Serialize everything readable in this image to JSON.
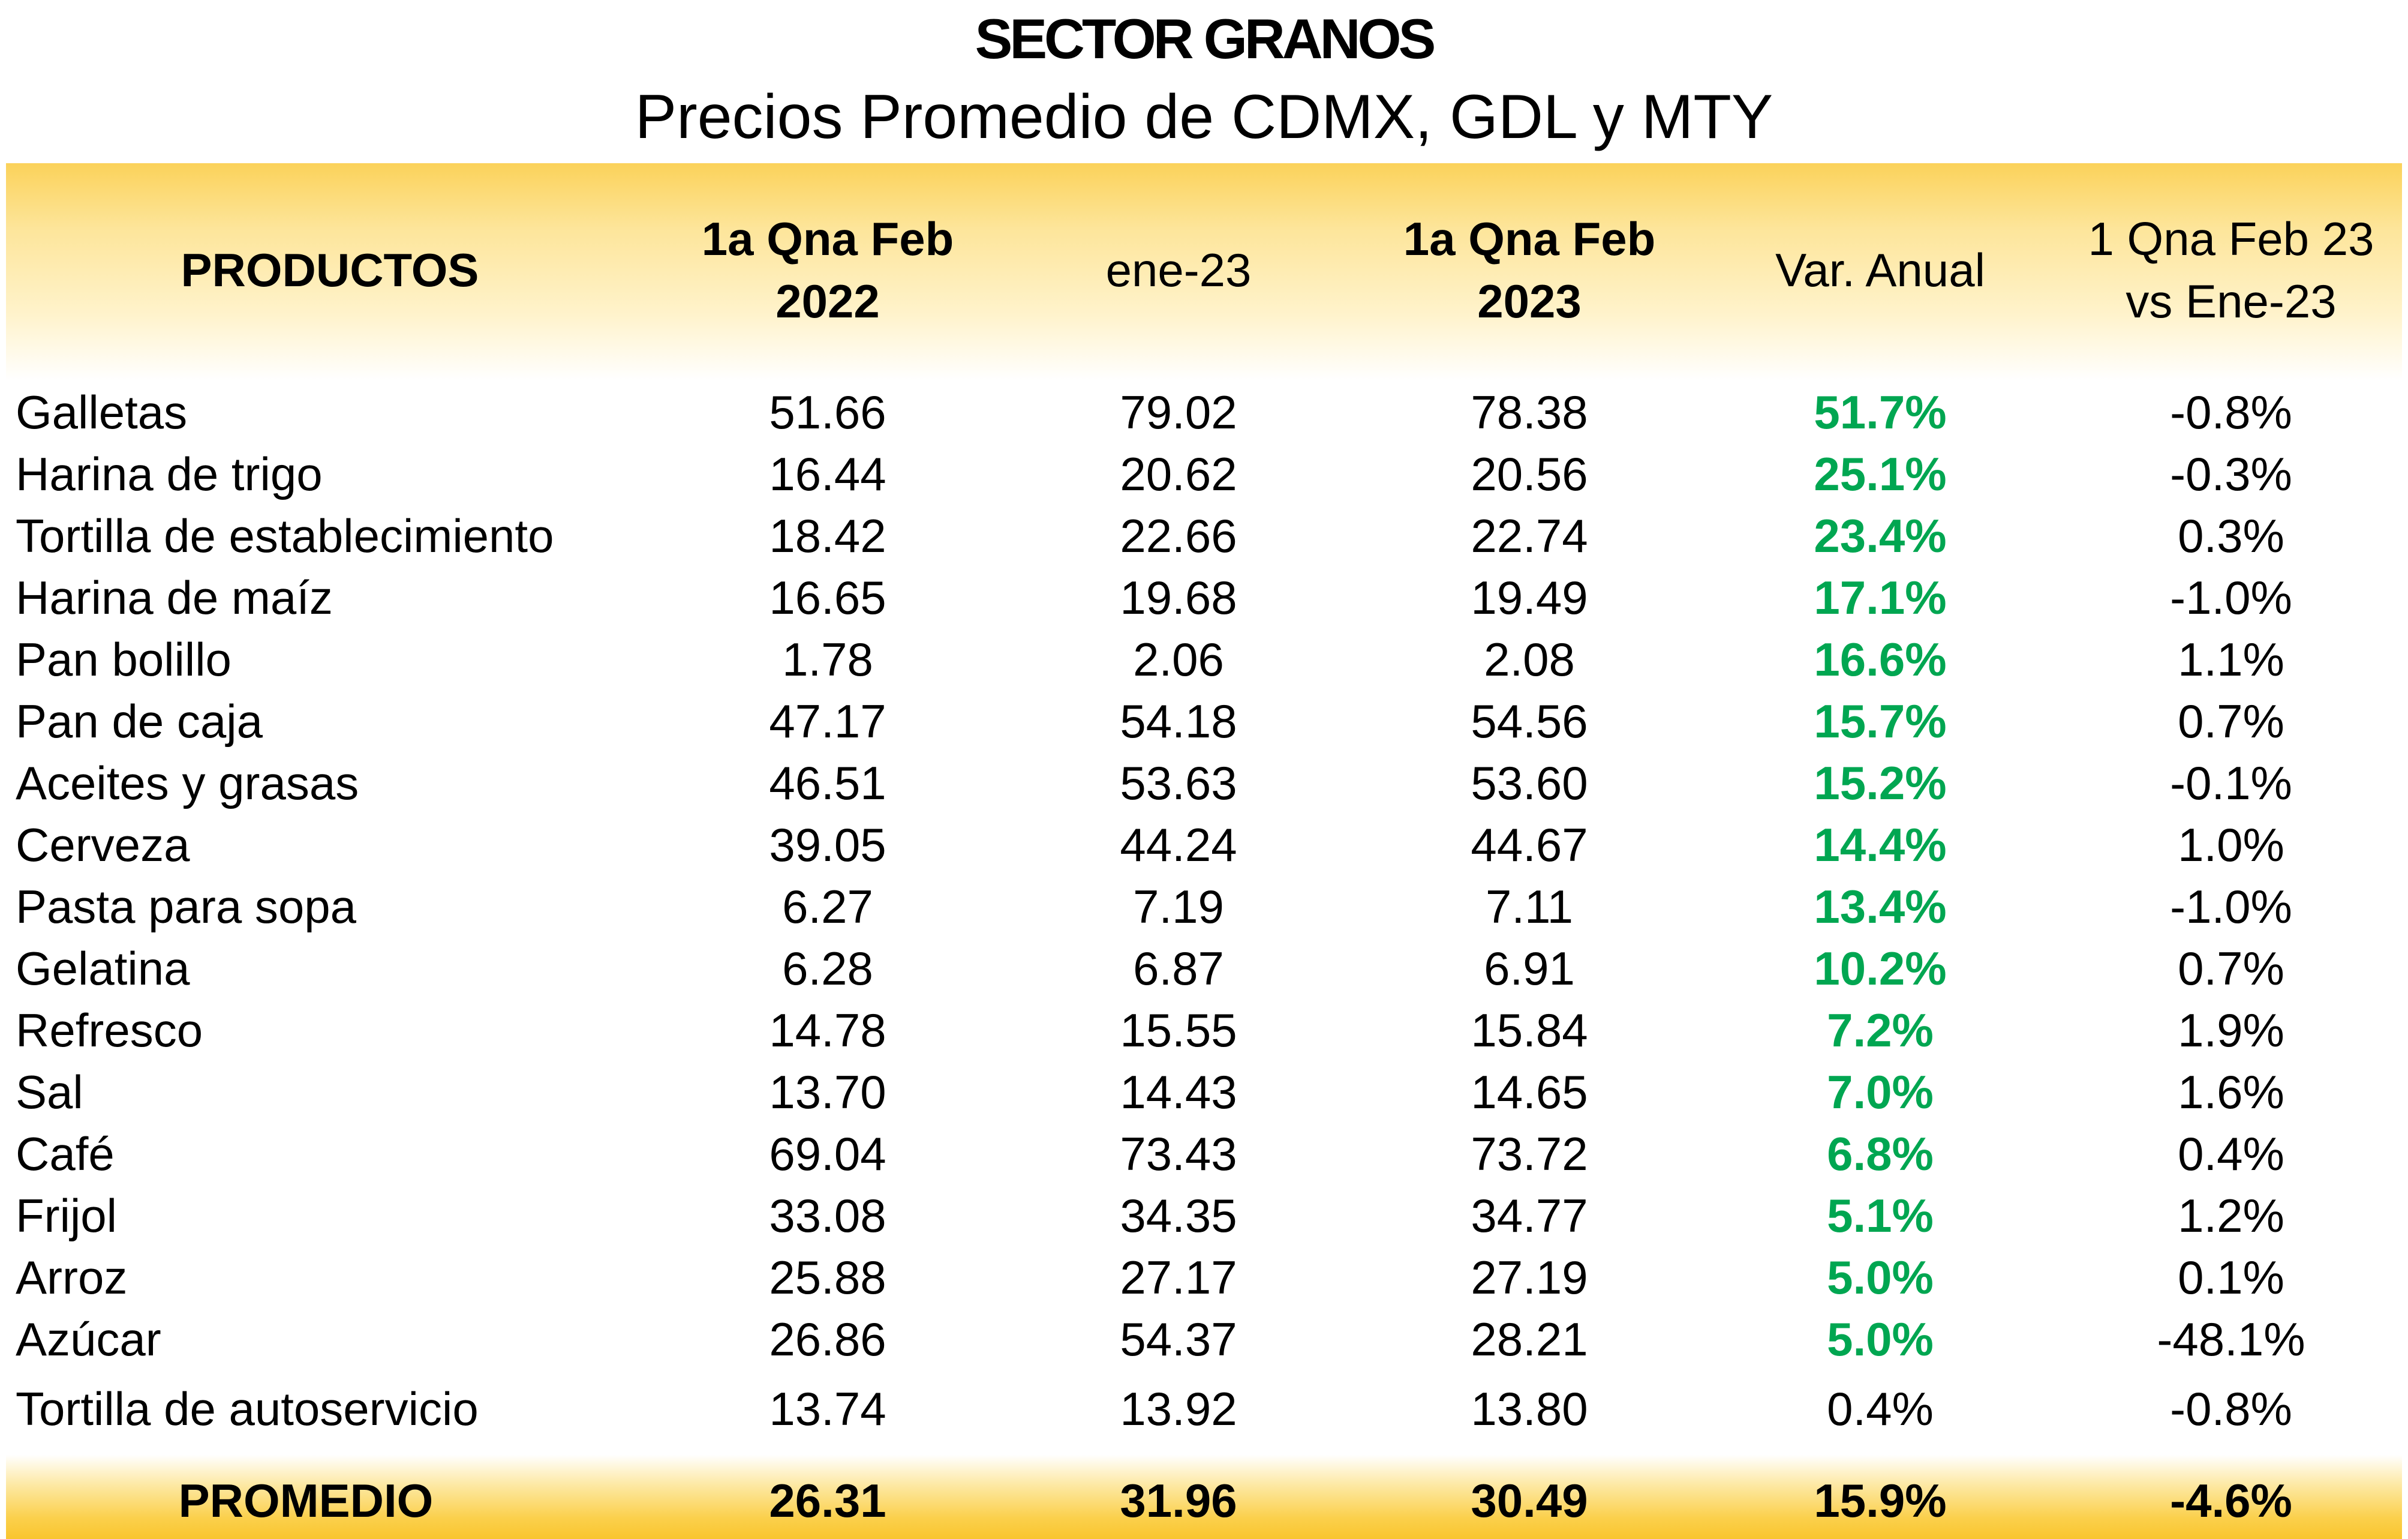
{
  "title": "SECTOR GRANOS",
  "subtitle": "Precios Promedio de CDMX, GDL y MTY",
  "headers": {
    "productos": "PRODUCTOS",
    "col1_line1": "1a Qna Feb",
    "col1_line2": "2022",
    "col2": "ene-23",
    "col3_line1": "1a Qna Feb",
    "col3_line2": "2023",
    "col4": "Var. Anual",
    "col5_line1": "1 Qna Feb 23",
    "col5_line2": "vs Ene-23"
  },
  "colors": {
    "header_band": "#fbd25a",
    "positive_variation": "#00a651",
    "footer_band": "#f9c52e"
  },
  "rows": [
    {
      "producto": "Galletas",
      "feb2022": "51.66",
      "ene23": "79.02",
      "feb2023": "78.38",
      "var_anual": "51.7%",
      "vs_ene": "-0.8%",
      "highlight": true
    },
    {
      "producto": "Harina de trigo",
      "feb2022": "16.44",
      "ene23": "20.62",
      "feb2023": "20.56",
      "var_anual": "25.1%",
      "vs_ene": "-0.3%",
      "highlight": true
    },
    {
      "producto": "Tortilla de establecimiento",
      "feb2022": "18.42",
      "ene23": "22.66",
      "feb2023": "22.74",
      "var_anual": "23.4%",
      "vs_ene": "0.3%",
      "highlight": true
    },
    {
      "producto": "Harina de maíz",
      "feb2022": "16.65",
      "ene23": "19.68",
      "feb2023": "19.49",
      "var_anual": "17.1%",
      "vs_ene": "-1.0%",
      "highlight": true
    },
    {
      "producto": "Pan bolillo",
      "feb2022": "1.78",
      "ene23": "2.06",
      "feb2023": "2.08",
      "var_anual": "16.6%",
      "vs_ene": "1.1%",
      "highlight": true
    },
    {
      "producto": "Pan de caja",
      "feb2022": "47.17",
      "ene23": "54.18",
      "feb2023": "54.56",
      "var_anual": "15.7%",
      "vs_ene": "0.7%",
      "highlight": true
    },
    {
      "producto": "Aceites y grasas",
      "feb2022": "46.51",
      "ene23": "53.63",
      "feb2023": "53.60",
      "var_anual": "15.2%",
      "vs_ene": "-0.1%",
      "highlight": true
    },
    {
      "producto": "Cerveza",
      "feb2022": "39.05",
      "ene23": "44.24",
      "feb2023": "44.67",
      "var_anual": "14.4%",
      "vs_ene": "1.0%",
      "highlight": true
    },
    {
      "producto": "Pasta para sopa",
      "feb2022": "6.27",
      "ene23": "7.19",
      "feb2023": "7.11",
      "var_anual": "13.4%",
      "vs_ene": "-1.0%",
      "highlight": true
    },
    {
      "producto": "Gelatina",
      "feb2022": "6.28",
      "ene23": "6.87",
      "feb2023": "6.91",
      "var_anual": "10.2%",
      "vs_ene": "0.7%",
      "highlight": true
    },
    {
      "producto": "Refresco",
      "feb2022": "14.78",
      "ene23": "15.55",
      "feb2023": "15.84",
      "var_anual": "7.2%",
      "vs_ene": "1.9%",
      "highlight": true
    },
    {
      "producto": "Sal",
      "feb2022": "13.70",
      "ene23": "14.43",
      "feb2023": "14.65",
      "var_anual": "7.0%",
      "vs_ene": "1.6%",
      "highlight": true
    },
    {
      "producto": "Café",
      "feb2022": "69.04",
      "ene23": "73.43",
      "feb2023": "73.72",
      "var_anual": "6.8%",
      "vs_ene": "0.4%",
      "highlight": true
    },
    {
      "producto": "Frijol",
      "feb2022": "33.08",
      "ene23": "34.35",
      "feb2023": "34.77",
      "var_anual": "5.1%",
      "vs_ene": "1.2%",
      "highlight": true
    },
    {
      "producto": "Arroz",
      "feb2022": "25.88",
      "ene23": "27.17",
      "feb2023": "27.19",
      "var_anual": "5.0%",
      "vs_ene": "0.1%",
      "highlight": true
    },
    {
      "producto": "Azúcar",
      "feb2022": "26.86",
      "ene23": "54.37",
      "feb2023": "28.21",
      "var_anual": "5.0%",
      "vs_ene": "-48.1%",
      "highlight": true
    },
    {
      "producto": "Tortilla de autoservicio",
      "feb2022": "13.74",
      "ene23": "13.92",
      "feb2023": "13.80",
      "var_anual": "0.4%",
      "vs_ene": "-0.8%",
      "highlight": false
    }
  ],
  "total": {
    "producto": "PROMEDIO",
    "feb2022": "26.31",
    "ene23": "31.96",
    "feb2023": "30.49",
    "var_anual": "15.9%",
    "vs_ene": "-4.6%"
  }
}
